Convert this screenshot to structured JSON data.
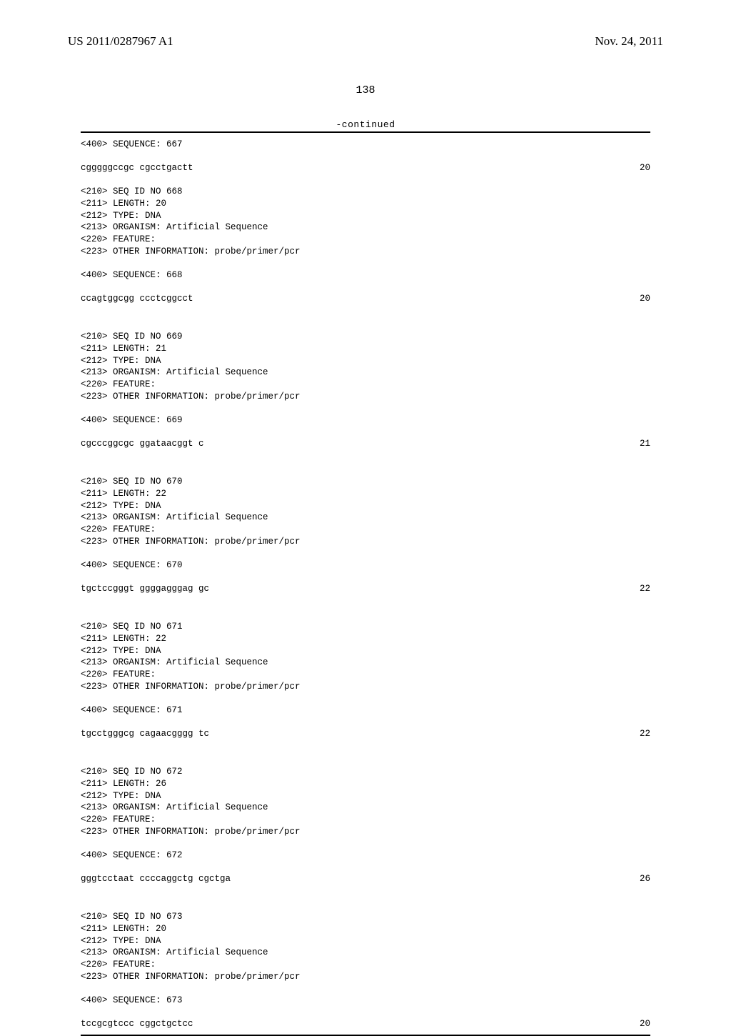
{
  "header": {
    "publication_number": "US 2011/0287967 A1",
    "publication_date": "Nov. 24, 2011"
  },
  "page_number": "138",
  "continued_label": "-continued",
  "entries": [
    {
      "pre_lines": [
        "<400> SEQUENCE: 667"
      ],
      "sequence_text": "cgggggccgc cgcctgactt",
      "sequence_len": "20",
      "meta": [
        "<210> SEQ ID NO 668",
        "<211> LENGTH: 20",
        "<212> TYPE: DNA",
        "<213> ORGANISM: Artificial Sequence",
        "<220> FEATURE:",
        "<223> OTHER INFORMATION: probe/primer/pcr"
      ],
      "post_line": "<400> SEQUENCE: 668",
      "post_sequence_text": "ccagtggcgg ccctcggcct",
      "post_sequence_len": "20"
    },
    {
      "meta": [
        "<210> SEQ ID NO 669",
        "<211> LENGTH: 21",
        "<212> TYPE: DNA",
        "<213> ORGANISM: Artificial Sequence",
        "<220> FEATURE:",
        "<223> OTHER INFORMATION: probe/primer/pcr"
      ],
      "post_line": "<400> SEQUENCE: 669",
      "post_sequence_text": "cgcccggcgc ggataacggt c",
      "post_sequence_len": "21"
    },
    {
      "meta": [
        "<210> SEQ ID NO 670",
        "<211> LENGTH: 22",
        "<212> TYPE: DNA",
        "<213> ORGANISM: Artificial Sequence",
        "<220> FEATURE:",
        "<223> OTHER INFORMATION: probe/primer/pcr"
      ],
      "post_line": "<400> SEQUENCE: 670",
      "post_sequence_text": "tgctccgggt ggggagggag gc",
      "post_sequence_len": "22"
    },
    {
      "meta": [
        "<210> SEQ ID NO 671",
        "<211> LENGTH: 22",
        "<212> TYPE: DNA",
        "<213> ORGANISM: Artificial Sequence",
        "<220> FEATURE:",
        "<223> OTHER INFORMATION: probe/primer/pcr"
      ],
      "post_line": "<400> SEQUENCE: 671",
      "post_sequence_text": "tgcctgggcg cagaacgggg tc",
      "post_sequence_len": "22"
    },
    {
      "meta": [
        "<210> SEQ ID NO 672",
        "<211> LENGTH: 26",
        "<212> TYPE: DNA",
        "<213> ORGANISM: Artificial Sequence",
        "<220> FEATURE:",
        "<223> OTHER INFORMATION: probe/primer/pcr"
      ],
      "post_line": "<400> SEQUENCE: 672",
      "post_sequence_text": "gggtcctaat ccccaggctg cgctga",
      "post_sequence_len": "26"
    },
    {
      "meta": [
        "<210> SEQ ID NO 673",
        "<211> LENGTH: 20",
        "<212> TYPE: DNA",
        "<213> ORGANISM: Artificial Sequence",
        "<220> FEATURE:",
        "<223> OTHER INFORMATION: probe/primer/pcr"
      ],
      "post_line": "<400> SEQUENCE: 673",
      "post_sequence_text": "tccgcgtccc cggctgctcc",
      "post_sequence_len": "20"
    }
  ]
}
